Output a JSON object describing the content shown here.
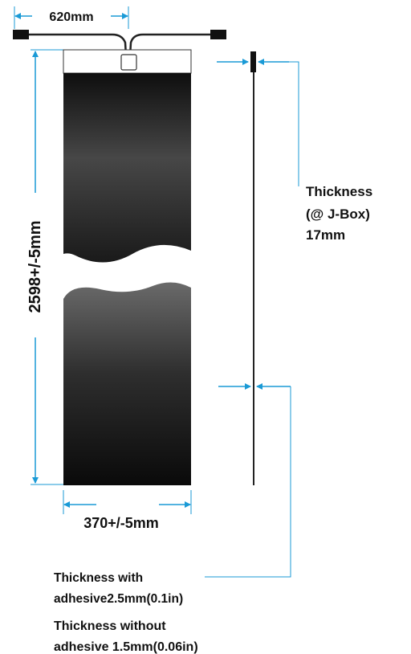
{
  "labels": {
    "cable_width": "620mm",
    "panel_length": "2598+/-5mm",
    "panel_width": "370+/-5mm",
    "jbox_thickness": [
      "Thickness",
      "(@ J-Box)",
      "17mm"
    ],
    "thickness_with_adhesive": [
      "Thickness with",
      "adhesive2.5mm(0.1in)"
    ],
    "thickness_without_adhesive": [
      "Thickness without",
      "adhesive 1.5mm(0.06in)"
    ]
  },
  "colors": {
    "dimension_line": "#1a9ad6",
    "panel_dark": "#111111",
    "panel_mid": "#3d3d3d",
    "outline": "#222222",
    "leader": "#1a9ad6"
  }
}
